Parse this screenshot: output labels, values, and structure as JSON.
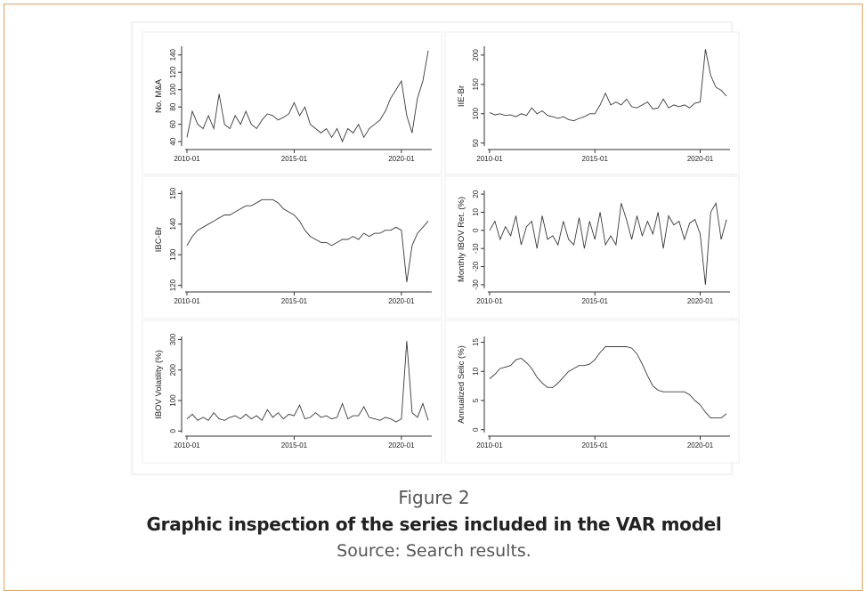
{
  "chart_data": [
    {
      "type": "line",
      "ylabel": "No. M&A",
      "color": "#3a3a3a",
      "x": [
        "2010-01",
        "2010-04",
        "2010-07",
        "2010-10",
        "2011-01",
        "2011-04",
        "2011-07",
        "2011-10",
        "2012-01",
        "2012-04",
        "2012-07",
        "2012-10",
        "2013-01",
        "2013-04",
        "2013-07",
        "2013-10",
        "2014-01",
        "2014-04",
        "2014-07",
        "2014-10",
        "2015-01",
        "2015-04",
        "2015-07",
        "2015-10",
        "2016-01",
        "2016-04",
        "2016-07",
        "2016-10",
        "2017-01",
        "2017-04",
        "2017-07",
        "2017-10",
        "2018-01",
        "2018-04",
        "2018-07",
        "2018-10",
        "2019-01",
        "2019-04",
        "2019-07",
        "2019-10",
        "2020-01",
        "2020-04",
        "2020-07",
        "2020-10",
        "2021-01",
        "2021-04"
      ],
      "values": [
        45,
        75,
        60,
        55,
        70,
        55,
        95,
        60,
        55,
        70,
        60,
        75,
        60,
        55,
        65,
        72,
        70,
        65,
        68,
        72,
        85,
        70,
        80,
        60,
        55,
        50,
        55,
        45,
        55,
        40,
        55,
        50,
        60,
        45,
        55,
        60,
        65,
        75,
        90,
        100,
        110,
        70,
        50,
        90,
        110,
        145
      ],
      "xlim": [
        "2009-12",
        "2021-06"
      ],
      "xticks": [
        "2010-01",
        "2015-01",
        "2020-01"
      ],
      "ylim": [
        35,
        150
      ],
      "yticks": [
        40,
        60,
        80,
        100,
        120,
        140
      ]
    },
    {
      "type": "line",
      "ylabel": "IIE-Br",
      "color": "#3a3a3a",
      "x": [
        "2010-01",
        "2010-04",
        "2010-07",
        "2010-10",
        "2011-01",
        "2011-04",
        "2011-07",
        "2011-10",
        "2012-01",
        "2012-04",
        "2012-07",
        "2012-10",
        "2013-01",
        "2013-04",
        "2013-07",
        "2013-10",
        "2014-01",
        "2014-04",
        "2014-07",
        "2014-10",
        "2015-01",
        "2015-04",
        "2015-07",
        "2015-10",
        "2016-01",
        "2016-04",
        "2016-07",
        "2016-10",
        "2017-01",
        "2017-04",
        "2017-07",
        "2017-10",
        "2018-01",
        "2018-04",
        "2018-07",
        "2018-10",
        "2019-01",
        "2019-04",
        "2019-07",
        "2019-10",
        "2020-01",
        "2020-04",
        "2020-07",
        "2020-10",
        "2021-01",
        "2021-04"
      ],
      "values": [
        102,
        98,
        100,
        97,
        98,
        95,
        100,
        97,
        110,
        100,
        105,
        97,
        95,
        92,
        95,
        90,
        88,
        92,
        95,
        100,
        100,
        115,
        135,
        115,
        120,
        115,
        125,
        112,
        110,
        115,
        120,
        108,
        110,
        125,
        110,
        115,
        112,
        115,
        110,
        118,
        120,
        210,
        165,
        145,
        140,
        130
      ],
      "xlim": [
        "2009-12",
        "2021-06"
      ],
      "xticks": [
        "2010-01",
        "2015-01",
        "2020-01"
      ],
      "ylim": [
        45,
        215
      ],
      "yticks": [
        50,
        100,
        150,
        200
      ]
    },
    {
      "type": "line",
      "ylabel": "IBC-Br",
      "color": "#3a3a3a",
      "x": [
        "2010-01",
        "2010-04",
        "2010-07",
        "2010-10",
        "2011-01",
        "2011-04",
        "2011-07",
        "2011-10",
        "2012-01",
        "2012-04",
        "2012-07",
        "2012-10",
        "2013-01",
        "2013-04",
        "2013-07",
        "2013-10",
        "2014-01",
        "2014-04",
        "2014-07",
        "2014-10",
        "2015-01",
        "2015-04",
        "2015-07",
        "2015-10",
        "2016-01",
        "2016-04",
        "2016-07",
        "2016-10",
        "2017-01",
        "2017-04",
        "2017-07",
        "2017-10",
        "2018-01",
        "2018-04",
        "2018-07",
        "2018-10",
        "2019-01",
        "2019-04",
        "2019-07",
        "2019-10",
        "2020-01",
        "2020-04",
        "2020-07",
        "2020-10",
        "2021-01",
        "2021-04"
      ],
      "values": [
        133,
        136,
        138,
        139,
        140,
        141,
        142,
        143,
        143,
        144,
        145,
        146,
        146,
        147,
        148,
        148,
        148,
        147,
        145,
        144,
        143,
        141,
        138,
        136,
        135,
        134,
        134,
        133,
        134,
        135,
        135,
        136,
        135,
        137,
        136,
        137,
        137,
        138,
        138,
        139,
        138,
        121,
        133,
        137,
        139,
        141
      ],
      "xlim": [
        "2009-12",
        "2021-06"
      ],
      "xticks": [
        "2010-01",
        "2015-01",
        "2020-01"
      ],
      "ylim": [
        119,
        151
      ],
      "yticks": [
        120,
        130,
        140,
        150
      ]
    },
    {
      "type": "line",
      "ylabel": "Monthly IBOV Ret. (%)",
      "color": "#3a3a3a",
      "x": [
        "2010-01",
        "2010-04",
        "2010-07",
        "2010-10",
        "2011-01",
        "2011-04",
        "2011-07",
        "2011-10",
        "2012-01",
        "2012-04",
        "2012-07",
        "2012-10",
        "2013-01",
        "2013-04",
        "2013-07",
        "2013-10",
        "2014-01",
        "2014-04",
        "2014-07",
        "2014-10",
        "2015-01",
        "2015-04",
        "2015-07",
        "2015-10",
        "2016-01",
        "2016-04",
        "2016-07",
        "2016-10",
        "2017-01",
        "2017-04",
        "2017-07",
        "2017-10",
        "2018-01",
        "2018-04",
        "2018-07",
        "2018-10",
        "2019-01",
        "2019-04",
        "2019-07",
        "2019-10",
        "2020-01",
        "2020-04",
        "2020-07",
        "2020-10",
        "2021-01",
        "2021-04"
      ],
      "values": [
        0,
        5,
        -5,
        2,
        -3,
        8,
        -8,
        2,
        5,
        -10,
        8,
        -5,
        -3,
        -8,
        5,
        -5,
        -8,
        7,
        -10,
        5,
        -5,
        10,
        -8,
        -3,
        -8,
        15,
        6,
        -5,
        8,
        -3,
        5,
        -2,
        10,
        -10,
        8,
        3,
        5,
        -5,
        4,
        6,
        -2,
        -30,
        10,
        15,
        -5,
        6
      ],
      "xlim": [
        "2009-12",
        "2021-06"
      ],
      "xticks": [
        "2010-01",
        "2015-01",
        "2020-01"
      ],
      "ylim": [
        -32,
        22
      ],
      "yticks": [
        -30,
        -20,
        -10,
        0,
        10,
        20
      ]
    },
    {
      "type": "line",
      "ylabel": "IBOV Volatility (%)",
      "color": "#3a3a3a",
      "x": [
        "2010-01",
        "2010-04",
        "2010-07",
        "2010-10",
        "2011-01",
        "2011-04",
        "2011-07",
        "2011-10",
        "2012-01",
        "2012-04",
        "2012-07",
        "2012-10",
        "2013-01",
        "2013-04",
        "2013-07",
        "2013-10",
        "2014-01",
        "2014-04",
        "2014-07",
        "2014-10",
        "2015-01",
        "2015-04",
        "2015-07",
        "2015-10",
        "2016-01",
        "2016-04",
        "2016-07",
        "2016-10",
        "2017-01",
        "2017-04",
        "2017-07",
        "2017-10",
        "2018-01",
        "2018-04",
        "2018-07",
        "2018-10",
        "2019-01",
        "2019-04",
        "2019-07",
        "2019-10",
        "2020-01",
        "2020-04",
        "2020-07",
        "2020-10",
        "2021-01",
        "2021-04"
      ],
      "values": [
        40,
        55,
        35,
        45,
        35,
        60,
        40,
        35,
        45,
        50,
        40,
        55,
        40,
        50,
        35,
        70,
        45,
        60,
        40,
        55,
        50,
        85,
        40,
        45,
        60,
        45,
        50,
        40,
        45,
        90,
        40,
        50,
        50,
        80,
        45,
        40,
        35,
        45,
        40,
        30,
        40,
        295,
        60,
        45,
        90,
        35
      ],
      "xlim": [
        "2009-12",
        "2021-06"
      ],
      "xticks": [
        "2010-01",
        "2015-01",
        "2020-01"
      ],
      "ylim": [
        -5,
        310
      ],
      "yticks": [
        0,
        100,
        200,
        300
      ]
    },
    {
      "type": "line",
      "ylabel": "Annualized Selic (%)",
      "color": "#3a3a3a",
      "x": [
        "2010-01",
        "2010-04",
        "2010-07",
        "2010-10",
        "2011-01",
        "2011-04",
        "2011-07",
        "2011-10",
        "2012-01",
        "2012-04",
        "2012-07",
        "2012-10",
        "2013-01",
        "2013-04",
        "2013-07",
        "2013-10",
        "2014-01",
        "2014-04",
        "2014-07",
        "2014-10",
        "2015-01",
        "2015-04",
        "2015-07",
        "2015-10",
        "2016-01",
        "2016-04",
        "2016-07",
        "2016-10",
        "2017-01",
        "2017-04",
        "2017-07",
        "2017-10",
        "2018-01",
        "2018-04",
        "2018-07",
        "2018-10",
        "2019-01",
        "2019-04",
        "2019-07",
        "2019-10",
        "2020-01",
        "2020-04",
        "2020-07",
        "2020-10",
        "2021-01",
        "2021-04"
      ],
      "values": [
        8.75,
        9.5,
        10.5,
        10.75,
        11,
        12,
        12.25,
        11.5,
        10.5,
        9,
        8,
        7.25,
        7.25,
        8,
        9,
        10,
        10.5,
        11,
        11,
        11.25,
        12,
        13.25,
        14.25,
        14.25,
        14.25,
        14.25,
        14.25,
        14,
        13,
        11.25,
        9.25,
        7.5,
        6.75,
        6.5,
        6.5,
        6.5,
        6.5,
        6.5,
        6,
        5,
        4.25,
        3,
        2,
        2,
        2,
        2.75
      ],
      "xlim": [
        "2009-12",
        "2021-06"
      ],
      "xticks": [
        "2010-01",
        "2015-01",
        "2020-01"
      ],
      "ylim": [
        -0.5,
        16
      ],
      "yticks": [
        0,
        5,
        10,
        15
      ]
    }
  ],
  "figure": {
    "label": "Figure 2",
    "title": "Graphic inspection of the series included in the VAR model",
    "source": "Source: Search results."
  }
}
